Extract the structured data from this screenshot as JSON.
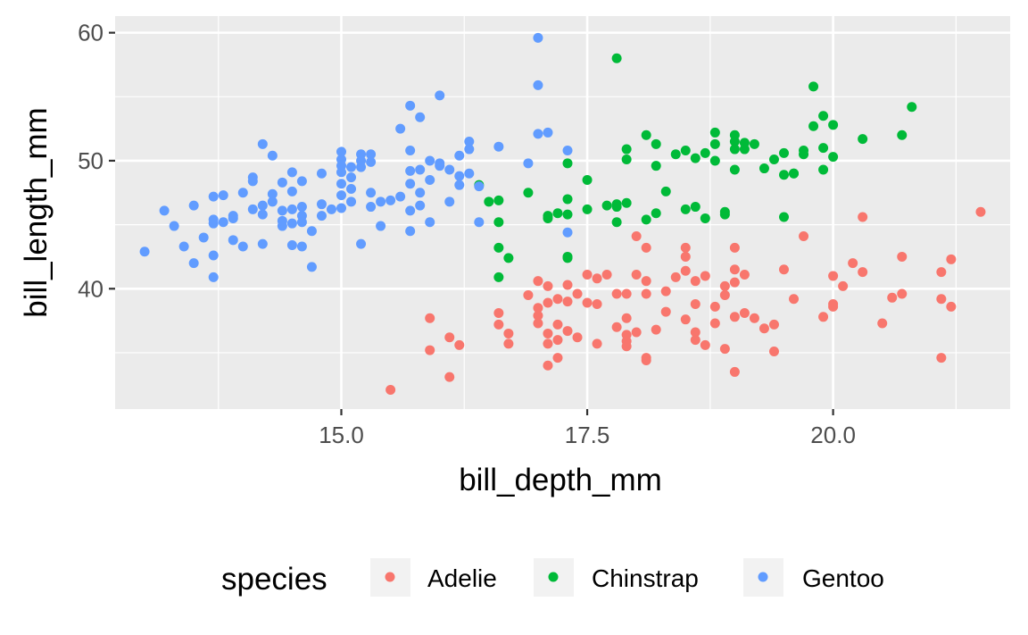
{
  "chart_data": {
    "type": "scatter",
    "xlabel": "bill_depth_mm",
    "ylabel": "bill_length_mm",
    "xlim": [
      12.7,
      21.8
    ],
    "ylim": [
      30.6,
      61.3
    ],
    "x_ticks": [
      15.0,
      17.5,
      20.0
    ],
    "x_tick_labels": [
      "15.0",
      "17.5",
      "20.0"
    ],
    "y_ticks": [
      40,
      50,
      60
    ],
    "y_tick_labels": [
      "40",
      "50",
      "60"
    ],
    "grid": true,
    "legend": {
      "title": "species",
      "position": "bottom",
      "entries": [
        "Adelie",
        "Chinstrap",
        "Gentoo"
      ]
    },
    "series": [
      {
        "name": "Adelie",
        "color": "#F8766D",
        "points": [
          [
            15.5,
            32.1
          ],
          [
            16.1,
            33.1
          ],
          [
            15.9,
            35.2
          ],
          [
            16.2,
            35.6
          ],
          [
            16.1,
            36.2
          ],
          [
            15.9,
            37.7
          ],
          [
            16.6,
            38.1
          ],
          [
            16.6,
            37.2
          ],
          [
            16.7,
            36.5
          ],
          [
            16.7,
            35.7
          ],
          [
            16.9,
            39.5
          ],
          [
            17.0,
            37.3
          ],
          [
            17.1,
            36.5
          ],
          [
            17.1,
            35.7
          ],
          [
            17.0,
            37.9
          ],
          [
            17.2,
            37.2
          ],
          [
            17.3,
            36.7
          ],
          [
            17.2,
            36.0
          ],
          [
            17.4,
            36.2
          ],
          [
            17.6,
            35.7
          ],
          [
            17.0,
            38.5
          ],
          [
            17.1,
            38.9
          ],
          [
            17.2,
            39.2
          ],
          [
            17.4,
            39.6
          ],
          [
            17.3,
            39.0
          ],
          [
            17.1,
            40.2
          ],
          [
            17.0,
            40.6
          ],
          [
            17.3,
            40.3
          ],
          [
            17.1,
            34.0
          ],
          [
            17.2,
            34.6
          ],
          [
            17.5,
            38.9
          ],
          [
            17.6,
            40.8
          ],
          [
            17.5,
            41.1
          ],
          [
            17.7,
            41.1
          ],
          [
            17.6,
            38.8
          ],
          [
            17.8,
            39.6
          ],
          [
            17.8,
            37.0
          ],
          [
            17.9,
            39.6
          ],
          [
            17.9,
            37.7
          ],
          [
            17.9,
            36.4
          ],
          [
            17.9,
            35.5
          ],
          [
            17.9,
            35.9
          ],
          [
            18.0,
            36.6
          ],
          [
            18.1,
            40.6
          ],
          [
            18.1,
            39.6
          ],
          [
            18.0,
            41.1
          ],
          [
            18.0,
            44.1
          ],
          [
            18.1,
            43.2
          ],
          [
            18.1,
            34.4
          ],
          [
            18.1,
            34.6
          ],
          [
            18.2,
            36.8
          ],
          [
            18.3,
            38.2
          ],
          [
            18.3,
            39.8
          ],
          [
            18.4,
            40.9
          ],
          [
            18.5,
            42.5
          ],
          [
            18.5,
            43.2
          ],
          [
            18.5,
            41.4
          ],
          [
            18.6,
            40.6
          ],
          [
            18.7,
            41.0
          ],
          [
            18.6,
            38.8
          ],
          [
            18.5,
            37.6
          ],
          [
            18.6,
            36.6
          ],
          [
            18.6,
            36.0
          ],
          [
            18.7,
            35.6
          ],
          [
            18.8,
            37.3
          ],
          [
            18.8,
            38.6
          ],
          [
            18.9,
            39.5
          ],
          [
            18.9,
            40.2
          ],
          [
            19.0,
            40.5
          ],
          [
            19.0,
            41.5
          ],
          [
            19.0,
            43.2
          ],
          [
            19.1,
            41.1
          ],
          [
            19.1,
            38.1
          ],
          [
            19.0,
            37.8
          ],
          [
            18.9,
            35.3
          ],
          [
            19.0,
            33.5
          ],
          [
            19.2,
            37.7
          ],
          [
            19.3,
            36.9
          ],
          [
            19.4,
            37.2
          ],
          [
            19.4,
            35.1
          ],
          [
            19.5,
            41.5
          ],
          [
            19.6,
            39.2
          ],
          [
            19.7,
            44.1
          ],
          [
            19.9,
            37.8
          ],
          [
            20.0,
            38.6
          ],
          [
            20.0,
            38.8
          ],
          [
            20.0,
            41.0
          ],
          [
            20.1,
            40.2
          ],
          [
            20.2,
            42.0
          ],
          [
            20.3,
            41.3
          ],
          [
            20.3,
            45.6
          ],
          [
            20.5,
            37.3
          ],
          [
            20.6,
            39.3
          ],
          [
            20.7,
            39.6
          ],
          [
            20.7,
            42.5
          ],
          [
            21.1,
            41.3
          ],
          [
            21.2,
            42.3
          ],
          [
            21.1,
            39.2
          ],
          [
            21.2,
            38.6
          ],
          [
            21.1,
            34.6
          ],
          [
            21.5,
            46.0
          ]
        ]
      },
      {
        "name": "Chinstrap",
        "color": "#00BA38",
        "points": [
          [
            16.6,
            40.9
          ],
          [
            16.7,
            42.4
          ],
          [
            16.6,
            43.2
          ],
          [
            16.5,
            46.8
          ],
          [
            16.6,
            46.9
          ],
          [
            16.4,
            48.1
          ],
          [
            16.6,
            45.2
          ],
          [
            16.9,
            47.5
          ],
          [
            17.1,
            45.5
          ],
          [
            17.2,
            45.9
          ],
          [
            17.1,
            45.7
          ],
          [
            17.3,
            45.8
          ],
          [
            17.3,
            47.0
          ],
          [
            17.3,
            49.8
          ],
          [
            17.3,
            42.4
          ],
          [
            17.3,
            42.5
          ],
          [
            17.5,
            46.2
          ],
          [
            17.5,
            48.5
          ],
          [
            17.8,
            58.0
          ],
          [
            17.8,
            45.2
          ],
          [
            17.8,
            46.4
          ],
          [
            17.8,
            46.6
          ],
          [
            17.9,
            46.7
          ],
          [
            17.9,
            50.1
          ],
          [
            17.9,
            50.9
          ],
          [
            18.1,
            45.4
          ],
          [
            18.2,
            45.9
          ],
          [
            18.1,
            52.0
          ],
          [
            18.2,
            51.3
          ],
          [
            18.2,
            49.6
          ],
          [
            18.3,
            47.6
          ],
          [
            18.4,
            50.5
          ],
          [
            18.5,
            50.8
          ],
          [
            18.6,
            46.4
          ],
          [
            18.6,
            50.2
          ],
          [
            18.7,
            50.6
          ],
          [
            18.7,
            45.5
          ],
          [
            18.8,
            50.0
          ],
          [
            18.8,
            51.3
          ],
          [
            18.8,
            52.2
          ],
          [
            18.9,
            45.8
          ],
          [
            18.9,
            46.0
          ],
          [
            19.0,
            49.3
          ],
          [
            19.0,
            50.9
          ],
          [
            19.0,
            51.5
          ],
          [
            19.0,
            52.0
          ],
          [
            19.1,
            50.9
          ],
          [
            19.1,
            51.4
          ],
          [
            19.2,
            51.3
          ],
          [
            19.3,
            49.4
          ],
          [
            19.4,
            50.1
          ],
          [
            19.5,
            45.6
          ],
          [
            19.5,
            48.9
          ],
          [
            19.5,
            50.6
          ],
          [
            19.6,
            49.0
          ],
          [
            19.7,
            50.5
          ],
          [
            19.7,
            50.8
          ],
          [
            19.8,
            55.8
          ],
          [
            19.8,
            52.7
          ],
          [
            19.9,
            53.5
          ],
          [
            19.9,
            49.3
          ],
          [
            19.9,
            51.0
          ],
          [
            20.0,
            52.8
          ],
          [
            20.0,
            50.3
          ],
          [
            20.3,
            51.7
          ],
          [
            20.7,
            52.0
          ],
          [
            20.8,
            54.2
          ],
          [
            19.6,
            49.0
          ],
          [
            18.5,
            46.2
          ],
          [
            17.7,
            46.5
          ]
        ]
      },
      {
        "name": "Gentoo",
        "color": "#619CFF",
        "points": [
          [
            13.0,
            42.9
          ],
          [
            13.2,
            46.1
          ],
          [
            13.3,
            44.9
          ],
          [
            13.4,
            43.3
          ],
          [
            13.5,
            42.0
          ],
          [
            13.5,
            46.5
          ],
          [
            13.6,
            44.0
          ],
          [
            13.7,
            45.1
          ],
          [
            13.7,
            45.4
          ],
          [
            13.7,
            47.2
          ],
          [
            13.7,
            42.6
          ],
          [
            13.7,
            40.9
          ],
          [
            13.8,
            45.2
          ],
          [
            13.8,
            47.3
          ],
          [
            13.9,
            43.8
          ],
          [
            13.9,
            45.5
          ],
          [
            13.9,
            45.7
          ],
          [
            14.0,
            43.3
          ],
          [
            14.1,
            48.7
          ],
          [
            14.0,
            47.5
          ],
          [
            14.1,
            46.2
          ],
          [
            14.1,
            48.4
          ],
          [
            14.2,
            43.5
          ],
          [
            14.2,
            51.3
          ],
          [
            14.2,
            46.5
          ],
          [
            14.2,
            45.8
          ],
          [
            14.3,
            46.8
          ],
          [
            14.3,
            50.4
          ],
          [
            14.3,
            47.4
          ],
          [
            14.4,
            44.9
          ],
          [
            14.4,
            46.1
          ],
          [
            14.4,
            45.3
          ],
          [
            14.4,
            48.3
          ],
          [
            14.5,
            47.6
          ],
          [
            14.5,
            46.2
          ],
          [
            14.6,
            43.3
          ],
          [
            14.5,
            45.1
          ],
          [
            14.5,
            49.1
          ],
          [
            14.5,
            43.4
          ],
          [
            14.6,
            45.2
          ],
          [
            14.6,
            45.7
          ],
          [
            14.6,
            46.4
          ],
          [
            14.6,
            48.4
          ],
          [
            14.7,
            41.7
          ],
          [
            14.7,
            44.5
          ],
          [
            14.8,
            46.6
          ],
          [
            14.8,
            49.0
          ],
          [
            14.8,
            45.7
          ],
          [
            14.9,
            46.2
          ],
          [
            15.0,
            46.3
          ],
          [
            15.0,
            47.3
          ],
          [
            15.0,
            48.2
          ],
          [
            15.0,
            49.1
          ],
          [
            15.0,
            49.6
          ],
          [
            15.0,
            50.1
          ],
          [
            15.0,
            50.7
          ],
          [
            15.1,
            47.8
          ],
          [
            15.1,
            48.7
          ],
          [
            15.1,
            49.5
          ],
          [
            15.1,
            46.8
          ],
          [
            15.2,
            43.5
          ],
          [
            15.2,
            49.5
          ],
          [
            15.2,
            50.5
          ],
          [
            15.2,
            50.0
          ],
          [
            15.3,
            46.4
          ],
          [
            15.3,
            47.5
          ],
          [
            15.3,
            49.9
          ],
          [
            15.3,
            50.5
          ],
          [
            15.4,
            44.9
          ],
          [
            15.4,
            46.8
          ],
          [
            15.5,
            46.9
          ],
          [
            15.6,
            47.2
          ],
          [
            15.6,
            52.5
          ],
          [
            15.7,
            44.5
          ],
          [
            15.7,
            46.1
          ],
          [
            15.7,
            48.2
          ],
          [
            15.7,
            49.2
          ],
          [
            15.7,
            50.8
          ],
          [
            15.7,
            54.3
          ],
          [
            15.8,
            53.4
          ],
          [
            15.8,
            46.5
          ],
          [
            15.8,
            47.5
          ],
          [
            15.8,
            49.3
          ],
          [
            15.9,
            50.0
          ],
          [
            15.9,
            48.5
          ],
          [
            15.9,
            45.2
          ],
          [
            16.0,
            49.6
          ],
          [
            16.0,
            55.1
          ],
          [
            16.0,
            49.8
          ],
          [
            16.1,
            46.8
          ],
          [
            16.1,
            49.3
          ],
          [
            16.2,
            48.1
          ],
          [
            16.2,
            48.8
          ],
          [
            16.2,
            50.4
          ],
          [
            16.3,
            49.0
          ],
          [
            16.3,
            51.5
          ],
          [
            16.3,
            50.9
          ],
          [
            16.4,
            45.2
          ],
          [
            16.6,
            51.1
          ],
          [
            16.9,
            49.8
          ],
          [
            17.0,
            52.1
          ],
          [
            17.0,
            55.9
          ],
          [
            17.0,
            59.6
          ],
          [
            17.1,
            52.2
          ],
          [
            17.3,
            50.8
          ],
          [
            17.3,
            44.4
          ],
          [
            16.4,
            48.0
          ]
        ]
      }
    ]
  }
}
